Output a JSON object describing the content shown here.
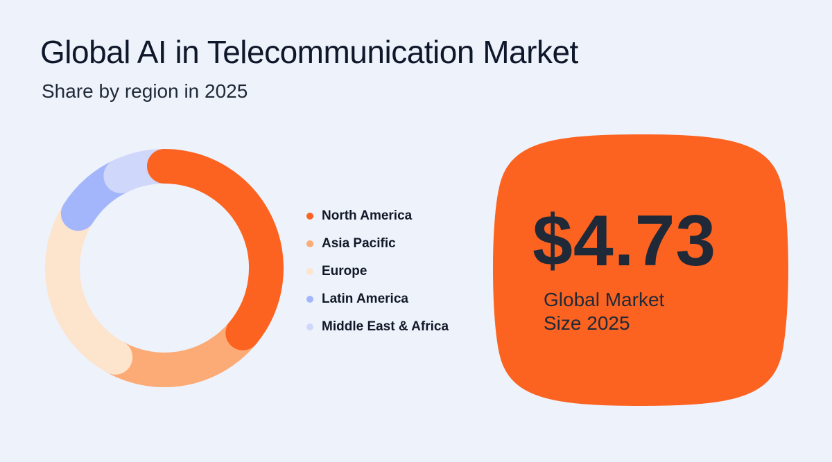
{
  "header": {
    "title": "Global AI in Telecommunication Market",
    "subtitle": "Share by region in 2025"
  },
  "chart_data": {
    "type": "pie",
    "title": "Global AI in Telecommunication Market",
    "subtitle": "Share by region in 2025",
    "categories": [
      "North America",
      "Asia Pacific",
      "Europe",
      "Latin America",
      "Middle East & Africa"
    ],
    "values": [
      36,
      22,
      26,
      9,
      7
    ],
    "colors": [
      "#fc6320",
      "#fcaa76",
      "#fde4cd",
      "#a3b6fb",
      "#cfd7fb"
    ],
    "legend_position": "right",
    "hole": "donut"
  },
  "market": {
    "value": "$4.73",
    "label_line1": "Global Market",
    "label_line2": "Size 2025",
    "color": "#fc6320"
  }
}
